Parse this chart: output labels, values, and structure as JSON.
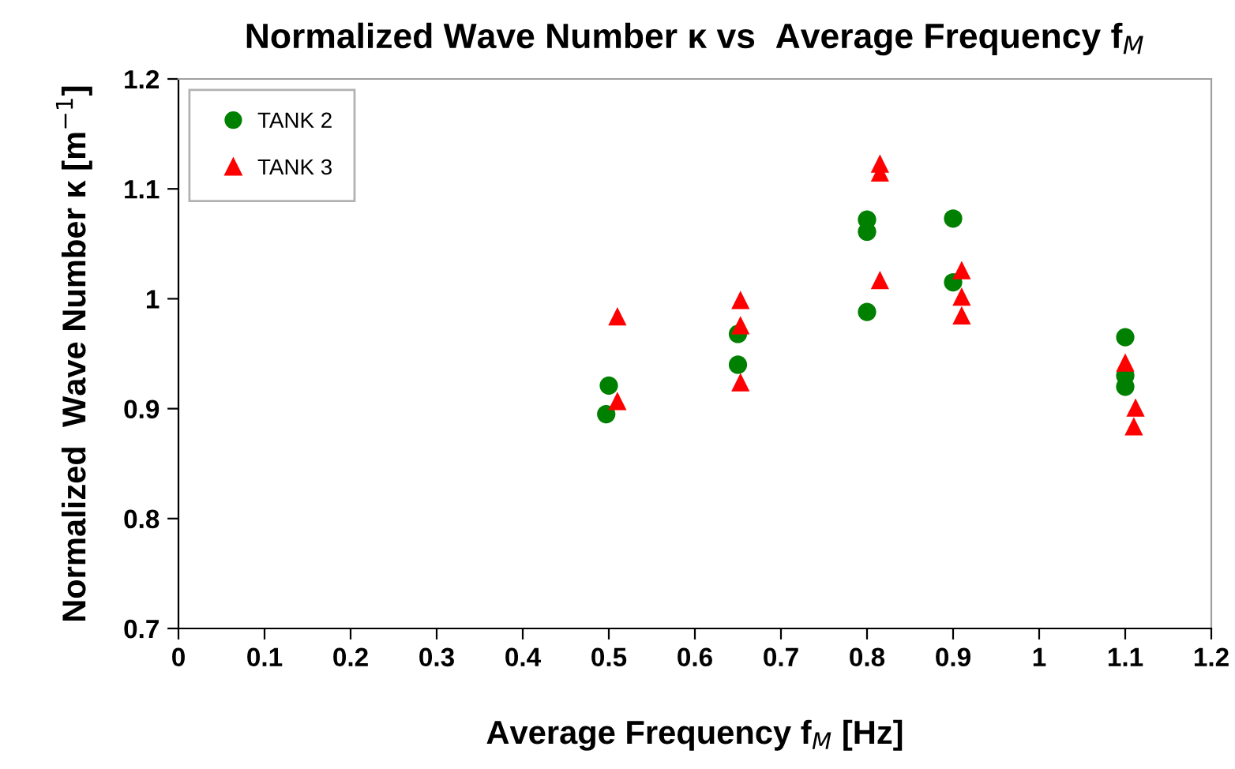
{
  "chart_data": {
    "type": "scatter",
    "title": "Normalized Wave Number κ vs  Average Frequency f$_{M}$",
    "xlabel": "Average Frequency f$_{M}$ [Hz]",
    "ylabel": "Normalized  Wave Number κ [m$^{−1}$]",
    "series": [
      {
        "name": "TANK 2",
        "color": "#008000",
        "marker": "circle",
        "x": [
          0.497,
          0.5,
          0.65,
          0.65,
          0.8,
          0.8,
          0.8,
          0.9,
          0.9,
          1.1,
          1.1,
          1.1
        ],
        "values": [
          0.895,
          0.921,
          0.968,
          0.94,
          1.072,
          1.061,
          0.988,
          1.073,
          1.015,
          0.965,
          0.93,
          0.92
        ]
      },
      {
        "name": "TANK 3",
        "color": "#ff0000",
        "marker": "triangle",
        "x": [
          0.51,
          0.51,
          0.653,
          0.653,
          0.653,
          0.815,
          0.815,
          0.815,
          0.91,
          0.91,
          0.91,
          1.1,
          1.112,
          1.11
        ],
        "values": [
          0.984,
          0.907,
          0.999,
          0.976,
          0.924,
          1.123,
          1.115,
          1.017,
          1.026,
          1.002,
          0.985,
          0.942,
          0.901,
          0.884
        ]
      }
    ],
    "xlim": [
      0,
      1.2
    ],
    "xticks": [
      0,
      0.1,
      0.2,
      0.3,
      0.4,
      0.5,
      0.6,
      0.7,
      0.8,
      0.9,
      1,
      1.1,
      1.2
    ],
    "ylim": [
      0.7,
      1.2
    ],
    "yticks": [
      0.7,
      0.8,
      0.9,
      1,
      1.1,
      1.2
    ],
    "grid": false,
    "legend": "top left"
  }
}
